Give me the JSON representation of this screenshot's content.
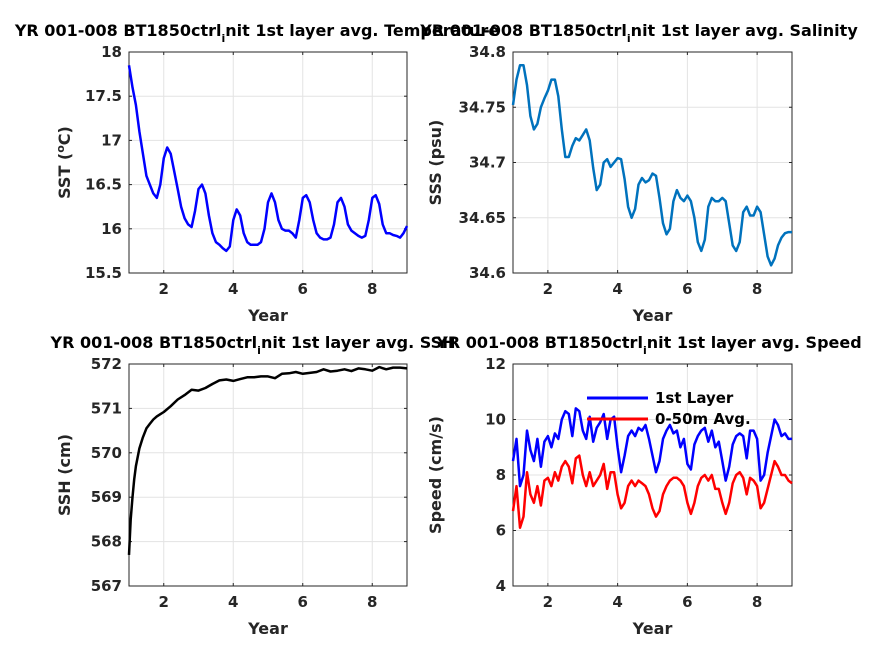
{
  "chart_data": [
    {
      "type": "line",
      "title_parts": [
        "YR 001-008 BT1850ctrl",
        "i",
        "nit 1st layer avg. Temperature"
      ],
      "xlabel": "Year",
      "ylabel": "SST (°C)",
      "ylabel_parts": [
        "SST (",
        "o",
        "C)"
      ],
      "xlim": [
        1,
        9
      ],
      "ylim": [
        15.5,
        18
      ],
      "xticks": [
        2,
        4,
        6,
        8
      ],
      "xtick_labels": [
        "2",
        "4",
        "6",
        "8"
      ],
      "yticks": [
        15.5,
        16,
        16.5,
        17,
        17.5,
        18
      ],
      "ytick_labels": [
        "15.5",
        "16",
        "16.5",
        "17",
        "17.5",
        "18"
      ],
      "grid": true,
      "series": [
        {
          "color": "#0000ff",
          "x": [
            1.0,
            1.1,
            1.2,
            1.3,
            1.4,
            1.5,
            1.6,
            1.7,
            1.8,
            1.9,
            2.0,
            2.1,
            2.2,
            2.3,
            2.4,
            2.5,
            2.6,
            2.7,
            2.8,
            2.9,
            3.0,
            3.1,
            3.2,
            3.3,
            3.4,
            3.5,
            3.6,
            3.7,
            3.8,
            3.9,
            4.0,
            4.1,
            4.2,
            4.3,
            4.4,
            4.5,
            4.6,
            4.7,
            4.8,
            4.9,
            5.0,
            5.1,
            5.2,
            5.3,
            5.4,
            5.5,
            5.6,
            5.7,
            5.8,
            5.9,
            6.0,
            6.1,
            6.2,
            6.3,
            6.4,
            6.5,
            6.6,
            6.7,
            6.8,
            6.9,
            7.0,
            7.1,
            7.2,
            7.3,
            7.4,
            7.5,
            7.6,
            7.7,
            7.8,
            7.9,
            8.0,
            8.1,
            8.2,
            8.3,
            8.4,
            8.5,
            8.6,
            8.7,
            8.8,
            8.9,
            9.0
          ],
          "y": [
            17.85,
            17.6,
            17.4,
            17.1,
            16.85,
            16.6,
            16.5,
            16.4,
            16.35,
            16.5,
            16.8,
            16.92,
            16.85,
            16.65,
            16.45,
            16.25,
            16.12,
            16.05,
            16.02,
            16.2,
            16.45,
            16.5,
            16.4,
            16.15,
            15.95,
            15.85,
            15.82,
            15.78,
            15.75,
            15.8,
            16.1,
            16.22,
            16.15,
            15.95,
            15.85,
            15.82,
            15.82,
            15.82,
            15.85,
            16.0,
            16.3,
            16.4,
            16.3,
            16.1,
            16.0,
            15.98,
            15.98,
            15.95,
            15.9,
            16.1,
            16.35,
            16.38,
            16.3,
            16.1,
            15.95,
            15.9,
            15.88,
            15.88,
            15.9,
            16.05,
            16.3,
            16.35,
            16.25,
            16.05,
            15.98,
            15.95,
            15.92,
            15.9,
            15.92,
            16.1,
            16.35,
            16.38,
            16.28,
            16.05,
            15.95,
            15.95,
            15.93,
            15.92,
            15.9,
            15.95,
            16.03
          ]
        }
      ]
    },
    {
      "type": "line",
      "title_parts": [
        "YR 001-008 BT1850ctrl",
        "i",
        "nit 1st layer avg. Salinity"
      ],
      "xlabel": "Year",
      "ylabel": "SSS (psu)",
      "xlim": [
        1,
        9
      ],
      "ylim": [
        34.6,
        34.8
      ],
      "xticks": [
        2,
        4,
        6,
        8
      ],
      "xtick_labels": [
        "2",
        "4",
        "6",
        "8"
      ],
      "yticks": [
        34.6,
        34.65,
        34.7,
        34.75,
        34.8
      ],
      "ytick_labels": [
        "34.6",
        "34.65",
        "34.7",
        "34.75",
        "34.8"
      ],
      "grid": true,
      "series": [
        {
          "color": "#0072bd",
          "x": [
            1.0,
            1.1,
            1.2,
            1.3,
            1.4,
            1.5,
            1.6,
            1.7,
            1.8,
            1.9,
            2.0,
            2.1,
            2.2,
            2.3,
            2.4,
            2.5,
            2.6,
            2.7,
            2.8,
            2.9,
            3.0,
            3.1,
            3.2,
            3.3,
            3.4,
            3.5,
            3.6,
            3.7,
            3.8,
            3.9,
            4.0,
            4.1,
            4.2,
            4.3,
            4.4,
            4.5,
            4.6,
            4.7,
            4.8,
            4.9,
            5.0,
            5.1,
            5.2,
            5.3,
            5.4,
            5.5,
            5.6,
            5.7,
            5.8,
            5.9,
            6.0,
            6.1,
            6.2,
            6.3,
            6.4,
            6.5,
            6.6,
            6.7,
            6.8,
            6.9,
            7.0,
            7.1,
            7.2,
            7.3,
            7.4,
            7.5,
            7.6,
            7.7,
            7.8,
            7.9,
            8.0,
            8.1,
            8.2,
            8.3,
            8.4,
            8.5,
            8.6,
            8.7,
            8.8,
            8.9,
            9.0
          ],
          "y": [
            34.752,
            34.775,
            34.788,
            34.788,
            34.77,
            34.742,
            34.73,
            34.735,
            34.75,
            34.758,
            34.765,
            34.775,
            34.775,
            34.76,
            34.73,
            34.705,
            34.705,
            34.715,
            34.722,
            34.72,
            34.725,
            34.73,
            34.72,
            34.695,
            34.675,
            34.68,
            34.7,
            34.703,
            34.696,
            34.7,
            34.704,
            34.703,
            34.685,
            34.66,
            34.65,
            34.658,
            34.68,
            34.686,
            34.682,
            34.684,
            34.69,
            34.688,
            34.668,
            34.645,
            34.635,
            34.64,
            34.665,
            34.675,
            34.668,
            34.665,
            34.67,
            34.665,
            34.65,
            34.628,
            34.62,
            34.63,
            34.66,
            34.668,
            34.665,
            34.665,
            34.668,
            34.665,
            34.645,
            34.625,
            34.62,
            34.628,
            34.655,
            34.66,
            34.652,
            34.652,
            34.66,
            34.655,
            34.635,
            34.615,
            34.607,
            34.613,
            34.625,
            34.632,
            34.636,
            34.637,
            34.637
          ]
        }
      ]
    },
    {
      "type": "line",
      "title_parts": [
        "YR 001-008 BT1850ctrl",
        "i",
        "nit 1st layer avg. SSH"
      ],
      "xlabel": "Year",
      "ylabel": "SSH (cm)",
      "xlim": [
        1,
        9
      ],
      "ylim": [
        567,
        572
      ],
      "xticks": [
        2,
        4,
        6,
        8
      ],
      "xtick_labels": [
        "2",
        "4",
        "6",
        "8"
      ],
      "yticks": [
        567,
        568,
        569,
        570,
        571,
        572
      ],
      "ytick_labels": [
        "567",
        "568",
        "569",
        "570",
        "571",
        "572"
      ],
      "grid": true,
      "series": [
        {
          "color": "#000000",
          "x": [
            1.0,
            1.05,
            1.1,
            1.15,
            1.2,
            1.3,
            1.4,
            1.5,
            1.6,
            1.7,
            1.8,
            1.9,
            2.0,
            2.2,
            2.4,
            2.6,
            2.8,
            3.0,
            3.2,
            3.4,
            3.6,
            3.8,
            4.0,
            4.2,
            4.4,
            4.6,
            4.8,
            5.0,
            5.2,
            5.4,
            5.6,
            5.8,
            6.0,
            6.2,
            6.4,
            6.6,
            6.8,
            7.0,
            7.2,
            7.4,
            7.6,
            7.8,
            8.0,
            8.2,
            8.4,
            8.6,
            8.8,
            9.0
          ],
          "y": [
            567.7,
            568.5,
            569.0,
            569.4,
            569.7,
            570.1,
            570.35,
            570.55,
            570.65,
            570.75,
            570.82,
            570.87,
            570.92,
            571.05,
            571.2,
            571.3,
            571.42,
            571.4,
            571.46,
            571.55,
            571.63,
            571.65,
            571.62,
            571.66,
            571.7,
            571.7,
            571.72,
            571.72,
            571.68,
            571.78,
            571.79,
            571.82,
            571.78,
            571.8,
            571.82,
            571.88,
            571.83,
            571.85,
            571.88,
            571.84,
            571.9,
            571.88,
            571.85,
            571.93,
            571.88,
            571.92,
            571.92,
            571.9
          ]
        }
      ]
    },
    {
      "type": "line",
      "title_parts": [
        "YR 001-008 BT1850ctrl",
        "i",
        "nit 1st layer avg. Speed"
      ],
      "xlabel": "Year",
      "ylabel": "Speed (cm/s)",
      "xlim": [
        1,
        9
      ],
      "ylim": [
        4,
        12
      ],
      "xticks": [
        2,
        4,
        6,
        8
      ],
      "xtick_labels": [
        "2",
        "4",
        "6",
        "8"
      ],
      "yticks": [
        4,
        6,
        8,
        10,
        12
      ],
      "ytick_labels": [
        "4",
        "6",
        "8",
        "10",
        "12"
      ],
      "grid": true,
      "legend_location": "top-right",
      "series": [
        {
          "name": "1st Layer",
          "color": "#0000ff",
          "x": [
            1.0,
            1.1,
            1.2,
            1.3,
            1.4,
            1.5,
            1.6,
            1.7,
            1.8,
            1.9,
            2.0,
            2.1,
            2.2,
            2.3,
            2.4,
            2.5,
            2.6,
            2.7,
            2.8,
            2.9,
            3.0,
            3.1,
            3.2,
            3.3,
            3.4,
            3.5,
            3.6,
            3.7,
            3.8,
            3.9,
            4.0,
            4.1,
            4.2,
            4.3,
            4.4,
            4.5,
            4.6,
            4.7,
            4.8,
            4.9,
            5.0,
            5.1,
            5.2,
            5.3,
            5.4,
            5.5,
            5.6,
            5.7,
            5.8,
            5.9,
            6.0,
            6.1,
            6.2,
            6.3,
            6.4,
            6.5,
            6.6,
            6.7,
            6.8,
            6.9,
            7.0,
            7.1,
            7.2,
            7.3,
            7.4,
            7.5,
            7.6,
            7.7,
            7.8,
            7.9,
            8.0,
            8.1,
            8.2,
            8.3,
            8.4,
            8.5,
            8.6,
            8.7,
            8.8,
            8.9,
            9.0
          ],
          "y": [
            8.5,
            9.3,
            7.6,
            8.0,
            9.6,
            8.9,
            8.5,
            9.3,
            8.3,
            9.2,
            9.4,
            9.0,
            9.5,
            9.3,
            10.0,
            10.3,
            10.2,
            9.4,
            10.4,
            10.3,
            9.6,
            9.3,
            10.1,
            9.2,
            9.7,
            9.9,
            10.2,
            9.3,
            10.0,
            10.1,
            9.0,
            8.1,
            8.7,
            9.4,
            9.6,
            9.4,
            9.7,
            9.6,
            9.8,
            9.3,
            8.7,
            8.1,
            8.5,
            9.3,
            9.6,
            9.8,
            9.5,
            9.6,
            9.0,
            9.3,
            8.4,
            8.2,
            9.1,
            9.4,
            9.6,
            9.7,
            9.2,
            9.6,
            9.0,
            9.2,
            8.5,
            7.8,
            8.3,
            9.1,
            9.4,
            9.5,
            9.4,
            8.6,
            9.6,
            9.6,
            9.3,
            7.8,
            8.0,
            8.8,
            9.4,
            10.0,
            9.8,
            9.4,
            9.5,
            9.3,
            9.3
          ]
        },
        {
          "name": "0-50m Avg.",
          "color": "#ff0000",
          "x": [
            1.0,
            1.1,
            1.2,
            1.3,
            1.4,
            1.5,
            1.6,
            1.7,
            1.8,
            1.9,
            2.0,
            2.1,
            2.2,
            2.3,
            2.4,
            2.5,
            2.6,
            2.7,
            2.8,
            2.9,
            3.0,
            3.1,
            3.2,
            3.3,
            3.4,
            3.5,
            3.6,
            3.7,
            3.8,
            3.9,
            4.0,
            4.1,
            4.2,
            4.3,
            4.4,
            4.5,
            4.6,
            4.7,
            4.8,
            4.9,
            5.0,
            5.1,
            5.2,
            5.3,
            5.4,
            5.5,
            5.6,
            5.7,
            5.8,
            5.9,
            6.0,
            6.1,
            6.2,
            6.3,
            6.4,
            6.5,
            6.6,
            6.7,
            6.8,
            6.9,
            7.0,
            7.1,
            7.2,
            7.3,
            7.4,
            7.5,
            7.6,
            7.7,
            7.8,
            7.9,
            8.0,
            8.1,
            8.2,
            8.3,
            8.4,
            8.5,
            8.6,
            8.7,
            8.8,
            8.9,
            9.0
          ],
          "y": [
            6.7,
            7.6,
            6.1,
            6.5,
            8.1,
            7.3,
            7.0,
            7.6,
            6.9,
            7.8,
            7.9,
            7.6,
            8.1,
            7.8,
            8.3,
            8.5,
            8.3,
            7.7,
            8.6,
            8.7,
            8.0,
            7.6,
            8.1,
            7.6,
            7.8,
            8.0,
            8.4,
            7.5,
            8.1,
            8.1,
            7.3,
            6.8,
            7.0,
            7.6,
            7.8,
            7.6,
            7.8,
            7.7,
            7.6,
            7.3,
            6.8,
            6.5,
            6.7,
            7.3,
            7.6,
            7.8,
            7.9,
            7.9,
            7.8,
            7.6,
            7.0,
            6.6,
            7.0,
            7.6,
            7.9,
            8.0,
            7.8,
            8.0,
            7.5,
            7.5,
            7.0,
            6.6,
            7.0,
            7.7,
            8.0,
            8.1,
            7.9,
            7.3,
            7.9,
            7.8,
            7.6,
            6.8,
            7.0,
            7.5,
            8.0,
            8.5,
            8.3,
            8.0,
            8.0,
            7.8,
            7.7
          ]
        }
      ]
    }
  ]
}
